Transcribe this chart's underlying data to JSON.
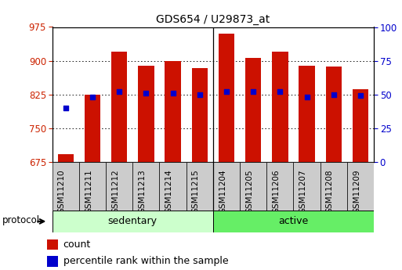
{
  "title": "GDS654 / U29873_at",
  "samples": [
    "GSM11210",
    "GSM11211",
    "GSM11212",
    "GSM11213",
    "GSM11214",
    "GSM11215",
    "GSM11204",
    "GSM11205",
    "GSM11206",
    "GSM11207",
    "GSM11208",
    "GSM11209"
  ],
  "count_values": [
    693,
    825,
    921,
    889,
    899,
    884,
    960,
    907,
    921,
    889,
    888,
    836
  ],
  "percentile_values": [
    40,
    48,
    52,
    51,
    51,
    50,
    52,
    52,
    52,
    48,
    50,
    49
  ],
  "groups": [
    {
      "label": "sedentary",
      "start": 0,
      "end": 6,
      "color": "#ccffcc"
    },
    {
      "label": "active",
      "start": 6,
      "end": 12,
      "color": "#66ee66"
    }
  ],
  "protocol_label": "protocol",
  "ylim_left": [
    675,
    975
  ],
  "ylim_right": [
    0,
    100
  ],
  "yticks_left": [
    675,
    750,
    825,
    900,
    975
  ],
  "yticks_right": [
    0,
    25,
    50,
    75,
    100
  ],
  "bar_color": "#cc1100",
  "dot_color": "#0000cc",
  "bg_color": "#ffffff",
  "plot_bg_color": "#ffffff",
  "grid_color": "#000000",
  "tick_label_color_left": "#cc2200",
  "tick_label_color_right": "#0000cc",
  "bar_width": 0.6,
  "legend_count_label": "count",
  "legend_pct_label": "percentile rank within the sample",
  "figsize": [
    5.13,
    3.45
  ],
  "dpi": 100,
  "xtick_bg_color": "#cccccc",
  "separator_color": "#000000",
  "spine_color": "#000000"
}
